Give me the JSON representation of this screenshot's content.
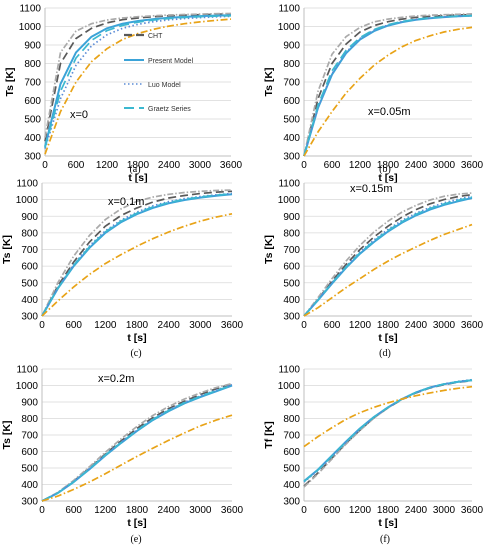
{
  "figure": {
    "legend_entries": [
      {
        "label": "CHT",
        "color": "#595959",
        "dash": "8 4",
        "width": 2.2
      },
      {
        "label": "Present Model",
        "color": "#3ba3d8",
        "dash": "",
        "width": 2
      },
      {
        "label": "Luo Model",
        "color": "#5a8bd6",
        "dash": "1.5 2.5",
        "width": 1.6
      },
      {
        "label": "Graetz Series",
        "color": "#3bb8d0",
        "dash": "10 5",
        "width": 2
      }
    ]
  },
  "chart_data": [
    {
      "type": "line",
      "caption": "(a)",
      "annotation": "x=0",
      "xlabel": "t [s]",
      "ylabel": "Ts [K]",
      "xlim": [
        0,
        3600
      ],
      "ylim": [
        300,
        1100
      ],
      "xticks": [
        0,
        600,
        1200,
        1800,
        2400,
        3000,
        3600
      ],
      "yticks": [
        300,
        400,
        500,
        600,
        700,
        800,
        900,
        1000,
        1100
      ],
      "grid": true,
      "legend": "right",
      "x": [
        0,
        300,
        600,
        900,
        1200,
        1500,
        1800,
        2100,
        2400,
        2700,
        3000,
        3300,
        3600
      ],
      "series": [
        {
          "name": "CHT",
          "color": "#595959",
          "dash": "8 4",
          "values": [
            380,
            800,
            935,
            990,
            1020,
            1037,
            1046,
            1053,
            1058,
            1061,
            1064,
            1066,
            1068
          ]
        },
        {
          "name": "",
          "color": "#aaaaaa",
          "dash": "6 2 1.5 2",
          "values": [
            400,
            860,
            975,
            1015,
            1035,
            1046,
            1053,
            1058,
            1062,
            1065,
            1067,
            1069,
            1070
          ]
        },
        {
          "name": "Present Model",
          "color": "#3ba3d8",
          "dash": "",
          "values": [
            350,
            690,
            860,
            945,
            990,
            1015,
            1030,
            1040,
            1047,
            1052,
            1056,
            1059,
            1061
          ]
        },
        {
          "name": "Luo Model",
          "color": "#5a8bd6",
          "dash": "1.5 2.5",
          "values": [
            340,
            610,
            790,
            895,
            955,
            990,
            1012,
            1026,
            1036,
            1043,
            1048,
            1052,
            1055
          ]
        },
        {
          "name": "Graetz Series",
          "color": "#3bb8d0",
          "dash": "10 5",
          "values": [
            345,
            650,
            830,
            925,
            978,
            1006,
            1024,
            1035,
            1043,
            1049,
            1053,
            1056,
            1058
          ]
        },
        {
          "name": "",
          "color": "#e8a317",
          "dash": "7 2.5 1.5 2.5",
          "values": [
            310,
            540,
            700,
            810,
            880,
            930,
            962,
            985,
            1002,
            1015,
            1025,
            1033,
            1040
          ]
        }
      ]
    },
    {
      "type": "line",
      "caption": "(b)",
      "annotation": "x=0.05m",
      "xlabel": "t [s]",
      "ylabel": "Ts [K]",
      "xlim": [
        0,
        3600
      ],
      "ylim": [
        300,
        1100
      ],
      "xticks": [
        0,
        600,
        1200,
        1800,
        2400,
        3000,
        3600
      ],
      "yticks": [
        300,
        400,
        500,
        600,
        700,
        800,
        900,
        1000,
        1100
      ],
      "grid": true,
      "x": [
        0,
        300,
        600,
        900,
        1200,
        1500,
        1800,
        2100,
        2400,
        2700,
        3000,
        3300,
        3600
      ],
      "series": [
        {
          "name": "CHT",
          "color": "#595959",
          "dash": "8 4",
          "values": [
            300,
            610,
            800,
            905,
            970,
            1005,
            1026,
            1040,
            1049,
            1055,
            1059,
            1062,
            1064
          ]
        },
        {
          "name": "",
          "color": "#aaaaaa",
          "dash": "6 2 1.5 2",
          "values": [
            300,
            650,
            850,
            945,
            995,
            1025,
            1040,
            1050,
            1057,
            1061,
            1064,
            1066,
            1068
          ]
        },
        {
          "name": "Present Model",
          "color": "#3ba3d8",
          "dash": "",
          "values": [
            300,
            560,
            740,
            855,
            930,
            975,
            1005,
            1024,
            1036,
            1045,
            1051,
            1055,
            1058
          ]
        },
        {
          "name": "Luo Model",
          "color": "#5a8bd6",
          "dash": "1.5 2.5",
          "values": [
            300,
            560,
            745,
            860,
            935,
            980,
            1008,
            1026,
            1038,
            1046,
            1051,
            1055,
            1058
          ]
        },
        {
          "name": "Graetz Series",
          "color": "#3bb8d0",
          "dash": "10 5",
          "values": [
            300,
            575,
            760,
            870,
            940,
            983,
            1010,
            1027,
            1039,
            1047,
            1052,
            1056,
            1059
          ]
        },
        {
          "name": "",
          "color": "#e8a317",
          "dash": "7 2.5 1.5 2.5",
          "values": [
            300,
            430,
            540,
            640,
            720,
            790,
            845,
            890,
            925,
            950,
            970,
            985,
            995
          ]
        }
      ]
    },
    {
      "type": "line",
      "caption": "(c)",
      "annotation": "x=0.1m",
      "xlabel": "t [s]",
      "ylabel": "Ts [K]",
      "xlim": [
        0,
        3600
      ],
      "ylim": [
        300,
        1100
      ],
      "xticks": [
        0,
        600,
        1200,
        1800,
        2400,
        3000,
        3600
      ],
      "yticks": [
        300,
        400,
        500,
        600,
        700,
        800,
        900,
        1000,
        1100
      ],
      "grid": true,
      "x": [
        0,
        300,
        600,
        900,
        1200,
        1500,
        1800,
        2100,
        2400,
        2700,
        3000,
        3300,
        3600
      ],
      "series": [
        {
          "name": "CHT",
          "color": "#595959",
          "dash": "8 4",
          "values": [
            300,
            480,
            625,
            745,
            840,
            905,
            950,
            985,
            1010,
            1025,
            1037,
            1045,
            1050
          ]
        },
        {
          "name": "",
          "color": "#aaaaaa",
          "dash": "6 2 1.5 2",
          "values": [
            300,
            500,
            660,
            785,
            880,
            945,
            990,
            1015,
            1032,
            1043,
            1050,
            1055,
            1058
          ]
        },
        {
          "name": "Present Model",
          "color": "#3ba3d8",
          "dash": "",
          "values": [
            300,
            465,
            600,
            710,
            800,
            865,
            913,
            950,
            978,
            998,
            1012,
            1023,
            1032
          ]
        },
        {
          "name": "Luo Model",
          "color": "#5a8bd6",
          "dash": "1.5 2.5",
          "values": [
            300,
            470,
            610,
            722,
            812,
            877,
            925,
            962,
            988,
            1006,
            1019,
            1029,
            1037
          ]
        },
        {
          "name": "Graetz Series",
          "color": "#3bb8d0",
          "dash": "10 5",
          "values": [
            300,
            468,
            605,
            716,
            806,
            871,
            919,
            956,
            983,
            1002,
            1016,
            1027,
            1035
          ]
        },
        {
          "name": "",
          "color": "#e8a317",
          "dash": "7 2.5 1.5 2.5",
          "values": [
            300,
            390,
            475,
            550,
            615,
            670,
            720,
            765,
            805,
            840,
            870,
            895,
            915
          ]
        }
      ]
    },
    {
      "type": "line",
      "caption": "(d)",
      "annotation": "x=0.15m",
      "xlabel": "t [s]",
      "ylabel": "Ts [K]",
      "xlim": [
        0,
        3600
      ],
      "ylim": [
        300,
        1100
      ],
      "xticks": [
        0,
        600,
        1200,
        1800,
        2400,
        3000,
        3600
      ],
      "yticks": [
        300,
        400,
        500,
        600,
        700,
        800,
        900,
        1000,
        1100
      ],
      "grid": true,
      "x": [
        0,
        300,
        600,
        900,
        1200,
        1500,
        1800,
        2100,
        2400,
        2700,
        3000,
        3300,
        3600
      ],
      "series": [
        {
          "name": "CHT",
          "color": "#595959",
          "dash": "8 4",
          "values": [
            300,
            400,
            510,
            610,
            700,
            775,
            840,
            895,
            940,
            975,
            1000,
            1018,
            1030
          ]
        },
        {
          "name": "",
          "color": "#aaaaaa",
          "dash": "6 2 1.5 2",
          "values": [
            300,
            410,
            525,
            630,
            725,
            805,
            870,
            925,
            965,
            998,
            1020,
            1033,
            1040
          ]
        },
        {
          "name": "Present Model",
          "color": "#3ba3d8",
          "dash": "",
          "values": [
            300,
            395,
            495,
            590,
            675,
            745,
            808,
            862,
            905,
            940,
            968,
            990,
            1010
          ]
        },
        {
          "name": "Luo Model",
          "color": "#5a8bd6",
          "dash": "1.5 2.5",
          "values": [
            300,
            398,
            502,
            598,
            685,
            757,
            821,
            875,
            918,
            953,
            980,
            1002,
            1020
          ]
        },
        {
          "name": "Graetz Series",
          "color": "#3bb8d0",
          "dash": "10 5",
          "values": [
            300,
            397,
            499,
            594,
            680,
            751,
            814,
            868,
            912,
            947,
            974,
            996,
            1015
          ]
        },
        {
          "name": "",
          "color": "#e8a317",
          "dash": "7 2.5 1.5 2.5",
          "values": [
            300,
            350,
            410,
            470,
            525,
            580,
            630,
            675,
            715,
            755,
            790,
            820,
            850
          ]
        }
      ]
    },
    {
      "type": "line",
      "caption": "(e)",
      "annotation": "x=0.2m",
      "xlabel": "t [s]",
      "ylabel": "Ts [K]",
      "xlim": [
        0,
        3600
      ],
      "ylim": [
        300,
        1100
      ],
      "xticks": [
        0,
        600,
        1200,
        1800,
        2400,
        3000,
        3600
      ],
      "yticks": [
        300,
        400,
        500,
        600,
        700,
        800,
        900,
        1000,
        1100
      ],
      "grid": true,
      "x": [
        0,
        300,
        600,
        900,
        1200,
        1500,
        1800,
        2100,
        2400,
        2700,
        3000,
        3300,
        3600
      ],
      "series": [
        {
          "name": "CHT",
          "color": "#595959",
          "dash": "8 4",
          "values": [
            300,
            350,
            420,
            500,
            585,
            665,
            740,
            805,
            860,
            905,
            945,
            980,
            1010
          ]
        },
        {
          "name": "",
          "color": "#aaaaaa",
          "dash": "6 2 1.5 2",
          "values": [
            300,
            352,
            425,
            508,
            595,
            677,
            752,
            818,
            873,
            918,
            955,
            987,
            1012
          ]
        },
        {
          "name": "Present Model",
          "color": "#3ba3d8",
          "dash": "",
          "values": [
            300,
            348,
            415,
            493,
            575,
            652,
            725,
            790,
            845,
            892,
            930,
            965,
            1000
          ]
        },
        {
          "name": "Luo Model",
          "color": "#5a8bd6",
          "dash": "1.5 2.5",
          "values": [
            300,
            349,
            418,
            497,
            580,
            658,
            731,
            797,
            852,
            899,
            937,
            972,
            1005
          ]
        },
        {
          "name": "Graetz Series",
          "color": "#3bb8d0",
          "dash": "10 5",
          "values": [
            300,
            348,
            416,
            495,
            578,
            655,
            728,
            794,
            849,
            896,
            934,
            969,
            1002
          ]
        },
        {
          "name": "",
          "color": "#e8a317",
          "dash": "7 2.5 1.5 2.5",
          "values": [
            300,
            330,
            370,
            415,
            465,
            518,
            570,
            620,
            668,
            713,
            755,
            790,
            820
          ]
        }
      ]
    },
    {
      "type": "line",
      "caption": "(f)",
      "annotation": "",
      "xlabel": "t [s]",
      "ylabel": "Tf [K]",
      "xlim": [
        0,
        3600
      ],
      "ylim": [
        300,
        1100
      ],
      "xticks": [
        0,
        600,
        1200,
        1800,
        2400,
        3000,
        3600
      ],
      "yticks": [
        300,
        400,
        500,
        600,
        700,
        800,
        900,
        1000,
        1100
      ],
      "grid": true,
      "x": [
        0,
        300,
        600,
        900,
        1200,
        1500,
        1800,
        2100,
        2400,
        2700,
        3000,
        3300,
        3600
      ],
      "series": [
        {
          "name": "CHT",
          "color": "#595959",
          "dash": "8 4",
          "values": [
            390,
            470,
            560,
            650,
            730,
            805,
            865,
            915,
            955,
            985,
            1005,
            1020,
            1030
          ]
        },
        {
          "name": "",
          "color": "#aaaaaa",
          "dash": "6 2 1.5 2",
          "values": [
            385,
            465,
            555,
            645,
            728,
            803,
            865,
            917,
            958,
            988,
            1008,
            1023,
            1033
          ]
        },
        {
          "name": "Present Model",
          "color": "#3ba3d8",
          "dash": "",
          "values": [
            420,
            490,
            575,
            660,
            740,
            810,
            868,
            918,
            958,
            988,
            1008,
            1022,
            1032
          ]
        },
        {
          "name": "Luo Model",
          "color": "#5a8bd6",
          "dash": "1.5 2.5",
          "values": [
            415,
            485,
            570,
            656,
            737,
            808,
            868,
            919,
            959,
            989,
            1010,
            1025,
            1035
          ]
        },
        {
          "name": "Graetz Series",
          "color": "#3bb8d0",
          "dash": "10 5",
          "values": [
            418,
            488,
            572,
            658,
            738,
            809,
            868,
            918,
            958,
            988,
            1009,
            1023,
            1033
          ]
        },
        {
          "name": "",
          "color": "#e8a317",
          "dash": "7 2.5 1.5 2.5",
          "values": [
            630,
            690,
            745,
            795,
            835,
            868,
            895,
            918,
            938,
            955,
            970,
            983,
            993
          ]
        }
      ]
    }
  ]
}
